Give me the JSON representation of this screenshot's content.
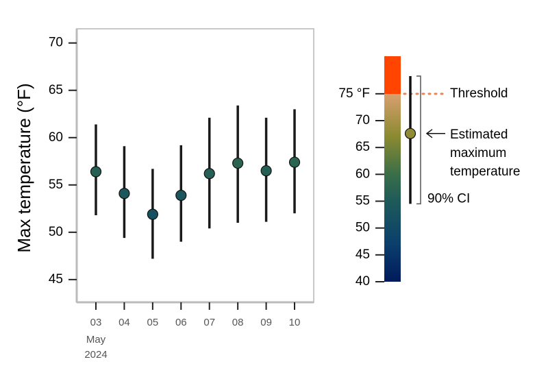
{
  "chart_data": {
    "type": "errorbar",
    "ylabel": "Max temperature (°F)",
    "categories": [
      "03",
      "04",
      "05",
      "06",
      "07",
      "08",
      "09",
      "10"
    ],
    "x_group_label": [
      "May",
      "2024"
    ],
    "values": [
      56.4,
      54.1,
      51.9,
      53.9,
      56.2,
      57.3,
      56.5,
      57.4
    ],
    "ci_low": [
      51.8,
      49.4,
      47.2,
      49.0,
      50.4,
      51.0,
      51.1,
      52.0
    ],
    "ci_high": [
      61.4,
      59.1,
      56.7,
      59.2,
      62.1,
      63.4,
      62.1,
      63.0
    ],
    "ylim": [
      42.6,
      71.5
    ],
    "yticks": [
      45,
      50,
      55,
      60,
      65,
      70
    ],
    "errorbar_color": "#1a1a1a",
    "legend": {
      "ylim": [
        40,
        82
      ],
      "yticks": [
        40,
        45,
        50,
        55,
        60,
        65,
        70,
        {
          "value": 75,
          "label": "75 °F"
        }
      ],
      "stops": [
        {
          "value": 40,
          "color": "#001a5c"
        },
        {
          "value": 47,
          "color": "#0b3f6c"
        },
        {
          "value": 55,
          "color": "#1e5a5a"
        },
        {
          "value": 60,
          "color": "#3a6e48"
        },
        {
          "value": 67,
          "color": "#8a8a30"
        },
        {
          "value": 75,
          "color": "#d9a070"
        },
        {
          "value": 75,
          "color": "#ff4500"
        },
        {
          "value": 82,
          "color": "#ff4500"
        }
      ],
      "threshold": {
        "value": 75,
        "label": "Threshold",
        "label_color": "#ff0000",
        "line_color": "#f08050"
      },
      "example": {
        "value": 67.6,
        "ci_low": 54.5,
        "ci_high": 78.3,
        "label_lines": [
          "Estimated",
          "maximum",
          "temperature"
        ],
        "ci_label": "90% CI"
      }
    }
  }
}
